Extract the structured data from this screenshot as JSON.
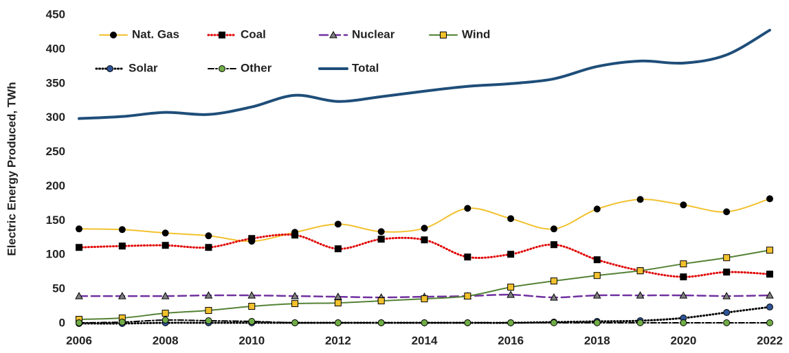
{
  "chart_data": {
    "type": "line",
    "y_label": "Electric Energy Produced, TWh",
    "x": [
      2006,
      2007,
      2008,
      2009,
      2010,
      2011,
      2012,
      2013,
      2014,
      2015,
      2016,
      2017,
      2018,
      2019,
      2020,
      2021,
      2022
    ],
    "xlim": [
      2006,
      2022
    ],
    "xticks": [
      2006,
      2008,
      2010,
      2012,
      2014,
      2016,
      2018,
      2020,
      2022
    ],
    "ylim": [
      0,
      450
    ],
    "yticks": [
      0,
      50,
      100,
      150,
      200,
      250,
      300,
      350,
      400,
      450
    ],
    "grid": false,
    "smooth": true,
    "legend": "top-left",
    "series": [
      {
        "name": "Nat. Gas",
        "color": "#f2c12e",
        "line_style": "solid",
        "marker": "circle",
        "marker_fill": "#000000",
        "values": [
          138,
          137,
          132,
          128,
          120,
          133,
          145,
          134,
          139,
          168,
          153,
          138,
          167,
          181,
          173,
          163,
          182
        ]
      },
      {
        "name": "Coal",
        "color": "#e00000",
        "line_style": "dotted",
        "marker": "square",
        "marker_fill": "#000000",
        "values": [
          111,
          113,
          114,
          111,
          124,
          129,
          109,
          123,
          122,
          97,
          101,
          115,
          93,
          77,
          68,
          75,
          72
        ]
      },
      {
        "name": "Nuclear",
        "color": "#7030a0",
        "line_style": "dashed",
        "marker": "triangle",
        "marker_fill": "#808080",
        "values": [
          40,
          40,
          40,
          41,
          41,
          40,
          39,
          38,
          39,
          40,
          42,
          38,
          41,
          41,
          41,
          40,
          41
        ]
      },
      {
        "name": "Wind",
        "color": "#548235",
        "line_style": "solid",
        "marker": "square",
        "marker_fill": "#f2c12e",
        "values": [
          6,
          8,
          15,
          19,
          25,
          29,
          30,
          33,
          36,
          40,
          53,
          62,
          70,
          77,
          87,
          96,
          107
        ]
      },
      {
        "name": "Solar",
        "color": "#000000",
        "line_style": "dotted",
        "marker": "circle",
        "marker_fill": "#2f5597",
        "values": [
          0,
          0,
          1,
          1,
          1,
          1,
          1,
          1,
          1,
          1,
          1,
          2,
          3,
          4,
          8,
          16,
          24
        ]
      },
      {
        "name": "Other",
        "color": "#000000",
        "line_style": "dashdot",
        "marker": "circle",
        "marker_fill": "#70ad47",
        "values": [
          1,
          2,
          5,
          4,
          3,
          1,
          1,
          1,
          1,
          1,
          1,
          1,
          1,
          1,
          1,
          1,
          1
        ]
      },
      {
        "name": "Total",
        "color": "#1f4e79",
        "line_style": "thick",
        "marker": "none",
        "marker_fill": "#1f4e79",
        "values": [
          299,
          302,
          308,
          305,
          316,
          333,
          324,
          331,
          339,
          346,
          350,
          357,
          375,
          383,
          380,
          392,
          428
        ]
      }
    ]
  }
}
